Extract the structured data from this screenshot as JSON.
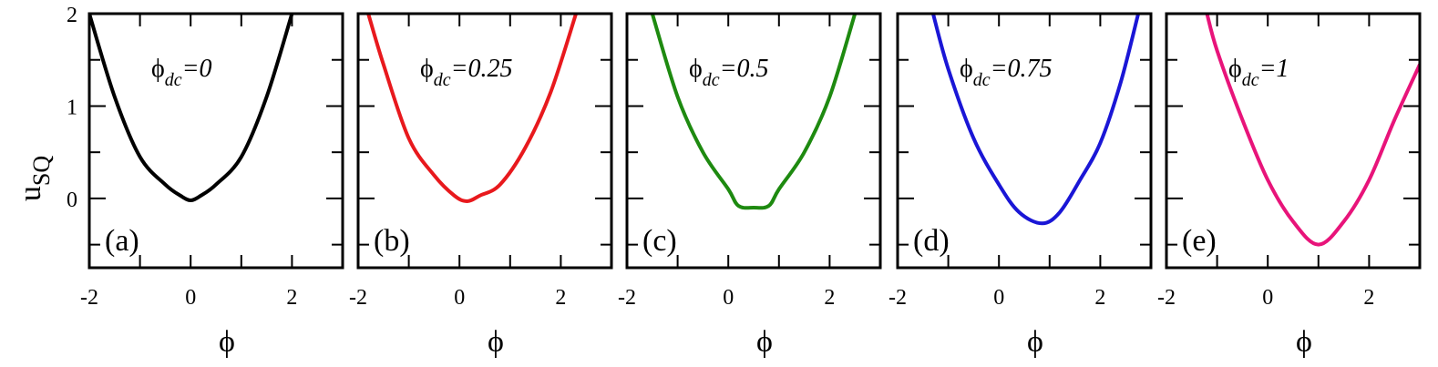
{
  "chart_data": [
    {
      "type": "line",
      "panel_label": "(a)",
      "annotation": {
        "symbol": "ϕ",
        "subscript": "dc",
        "value": "=0"
      },
      "xlabel": "ϕ",
      "ylabel": {
        "base": "u",
        "subscript": "SQ"
      },
      "xlim": [
        -2,
        3
      ],
      "ylim": [
        -0.75,
        2
      ],
      "xticks": [
        "-2",
        "0",
        "2"
      ],
      "yticks": [
        "0",
        "1",
        "2"
      ],
      "series": [
        {
          "color": "#000000",
          "x": [
            -2.0,
            -1.5,
            -1.0,
            -0.5,
            -0.2,
            0.0,
            0.2,
            0.5,
            1.0,
            1.5,
            2.0
          ],
          "y": [
            2.0,
            1.1,
            0.45,
            0.15,
            0.03,
            -0.02,
            0.03,
            0.15,
            0.45,
            1.1,
            2.0
          ]
        }
      ]
    },
    {
      "type": "line",
      "panel_label": "(b)",
      "annotation": {
        "symbol": "ϕ",
        "subscript": "dc",
        "value": "=0.25"
      },
      "xlabel": "ϕ",
      "xlim": [
        -2,
        3
      ],
      "ylim": [
        -0.75,
        2
      ],
      "xticks": [
        "-2",
        "0",
        "2"
      ],
      "series": [
        {
          "color": "#e8191d",
          "x": [
            -1.8,
            -1.5,
            -1.0,
            -0.5,
            -0.1,
            0.15,
            0.4,
            0.8,
            1.3,
            1.8,
            2.3
          ],
          "y": [
            2.0,
            1.45,
            0.65,
            0.25,
            0.03,
            -0.03,
            0.03,
            0.15,
            0.55,
            1.15,
            2.0
          ]
        }
      ]
    },
    {
      "type": "line",
      "panel_label": "(c)",
      "annotation": {
        "symbol": "ϕ",
        "subscript": "dc",
        "value": "=0.5"
      },
      "xlabel": "ϕ",
      "xlim": [
        -2,
        3
      ],
      "ylim": [
        -0.75,
        2
      ],
      "xticks": [
        "-2",
        "0",
        "2"
      ],
      "series": [
        {
          "color": "#1e8a10",
          "x": [
            -1.5,
            -1.0,
            -0.5,
            0.0,
            0.2,
            0.5,
            0.8,
            1.0,
            1.5,
            2.0,
            2.5
          ],
          "y": [
            2.0,
            1.1,
            0.5,
            0.1,
            -0.08,
            -0.1,
            -0.08,
            0.1,
            0.5,
            1.1,
            2.0
          ]
        }
      ]
    },
    {
      "type": "line",
      "panel_label": "(d)",
      "annotation": {
        "symbol": "ϕ",
        "subscript": "dc",
        "value": "=0.75"
      },
      "xlabel": "ϕ",
      "xlim": [
        -2,
        3
      ],
      "ylim": [
        -0.75,
        2
      ],
      "xticks": [
        "-2",
        "0",
        "2"
      ],
      "series": [
        {
          "color": "#1a16d6",
          "x": [
            -1.3,
            -1.0,
            -0.5,
            0.0,
            0.4,
            0.85,
            1.2,
            1.6,
            2.0,
            2.4,
            2.75
          ],
          "y": [
            2.0,
            1.4,
            0.65,
            0.15,
            -0.15,
            -0.27,
            -0.15,
            0.2,
            0.6,
            1.25,
            2.0
          ]
        }
      ]
    },
    {
      "type": "line",
      "panel_label": "(e)",
      "annotation": {
        "symbol": "ϕ",
        "subscript": "dc",
        "value": "=1"
      },
      "xlabel": "ϕ",
      "xlim": [
        -2,
        3
      ],
      "ylim": [
        -0.75,
        2
      ],
      "xticks": [
        "-2",
        "0",
        "2"
      ],
      "series": [
        {
          "color": "#e8147a",
          "x": [
            -1.2,
            -1.0,
            -0.5,
            0.0,
            0.5,
            1.0,
            1.5,
            2.0,
            2.5,
            3.0
          ],
          "y": [
            2.0,
            1.6,
            0.85,
            0.2,
            -0.25,
            -0.5,
            -0.25,
            0.2,
            0.85,
            1.45
          ]
        }
      ]
    }
  ]
}
